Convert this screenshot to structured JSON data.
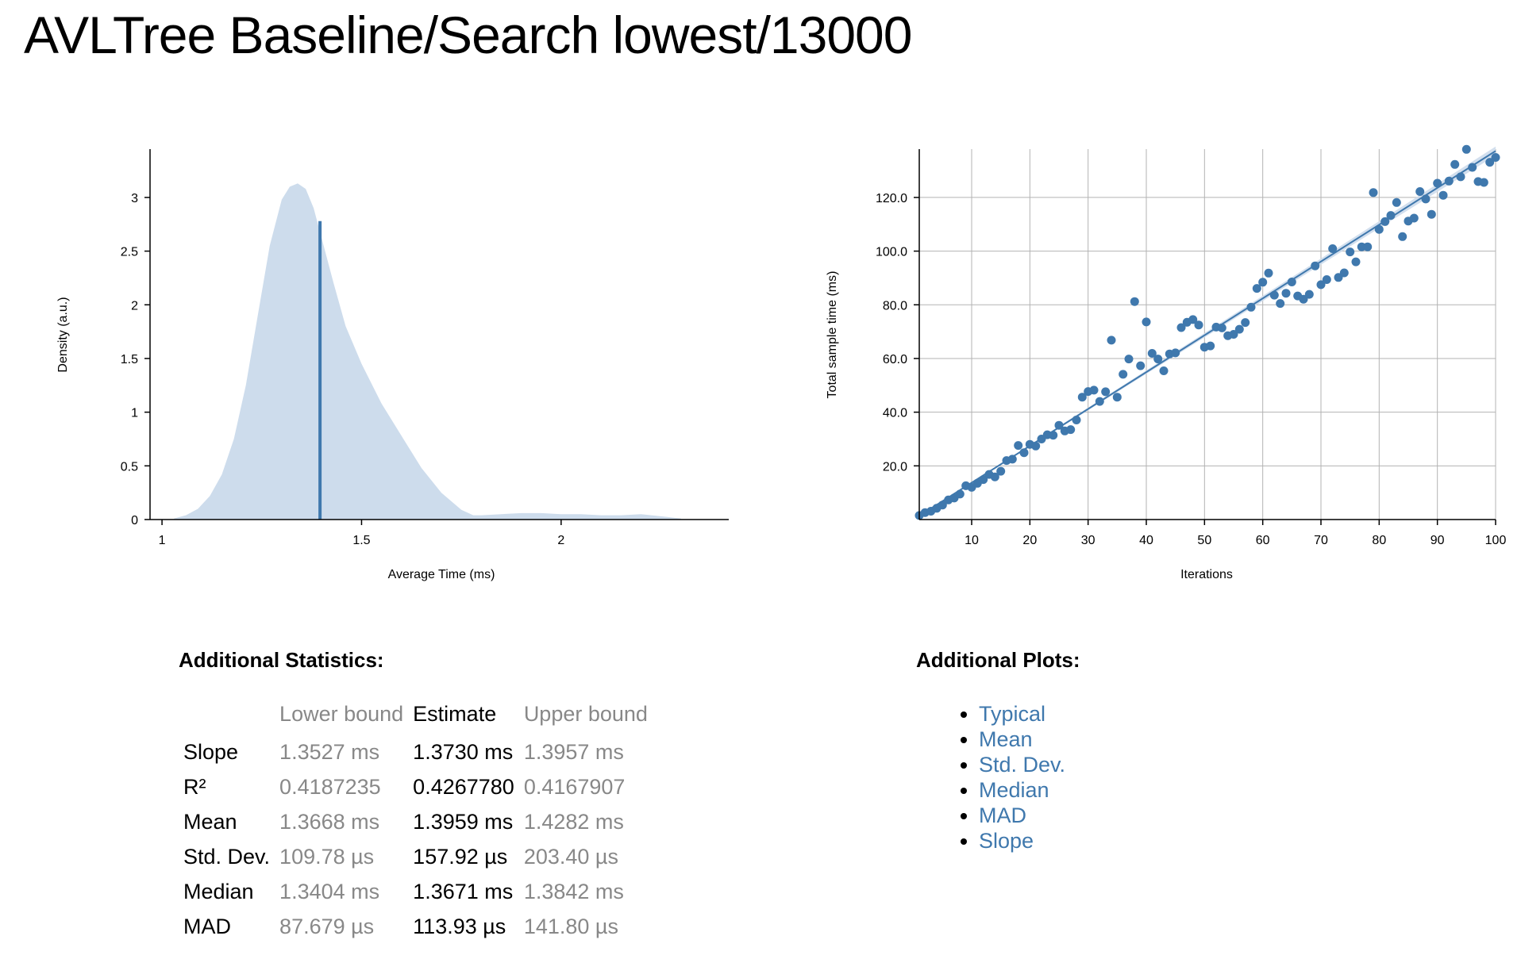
{
  "page": {
    "title": "AVLTree Baseline/Search lowest/13000"
  },
  "chart_data": [
    {
      "type": "area",
      "series_name": "PDF",
      "xlabel": "Average Time (ms)",
      "ylabel": "Density (a.u.)",
      "xlim": [
        0.97,
        2.42
      ],
      "ylim": [
        0,
        3.45
      ],
      "x_ticks": [
        "1",
        "1.5",
        "2"
      ],
      "x_tick_values": [
        1,
        1.5,
        2
      ],
      "y_ticks": [
        "0",
        "0.5",
        "1",
        "1.5",
        "2",
        "2.5",
        "3"
      ],
      "y_tick_values": [
        0,
        0.5,
        1,
        1.5,
        2,
        2.5,
        3
      ],
      "grid": false,
      "fill_color": "#cddcec",
      "mean_line_color": "#3f78ad",
      "mean_line": {
        "x": 1.3959,
        "y": 2.78
      },
      "density": {
        "x": [
          1.03,
          1.06,
          1.09,
          1.12,
          1.15,
          1.18,
          1.21,
          1.24,
          1.27,
          1.3,
          1.32,
          1.34,
          1.36,
          1.38,
          1.4,
          1.43,
          1.46,
          1.5,
          1.55,
          1.6,
          1.65,
          1.7,
          1.75,
          1.78,
          1.8,
          1.85,
          1.9,
          1.95,
          2.0,
          2.05,
          2.1,
          2.15,
          2.2,
          2.25,
          2.3
        ],
        "y": [
          0.01,
          0.04,
          0.1,
          0.22,
          0.42,
          0.75,
          1.25,
          1.9,
          2.55,
          2.98,
          3.1,
          3.13,
          3.08,
          2.9,
          2.62,
          2.2,
          1.8,
          1.45,
          1.08,
          0.78,
          0.48,
          0.25,
          0.09,
          0.04,
          0.04,
          0.05,
          0.06,
          0.06,
          0.05,
          0.05,
          0.04,
          0.04,
          0.05,
          0.03,
          0.01
        ]
      }
    },
    {
      "type": "scatter",
      "series_name": "Sample",
      "xlabel": "Iterations",
      "ylabel": "Total sample time (ms)",
      "xlim": [
        1,
        100
      ],
      "ylim": [
        0,
        138
      ],
      "x_ticks": [
        "10",
        "20",
        "30",
        "40",
        "50",
        "60",
        "70",
        "80",
        "90",
        "100"
      ],
      "x_tick_values": [
        10,
        20,
        30,
        40,
        50,
        60,
        70,
        80,
        90,
        100
      ],
      "y_ticks": [
        "20.0",
        "40.0",
        "60.0",
        "80.0",
        "100.0",
        "120.0"
      ],
      "y_tick_values": [
        20,
        40,
        60,
        80,
        100,
        120
      ],
      "grid": true,
      "point_color": "#3f78ad",
      "regression": {
        "slope": 1.373,
        "x": [
          1,
          100
        ],
        "y": [
          1.373,
          137.3
        ]
      },
      "points": {
        "x": [
          1,
          2,
          3,
          4,
          5,
          6,
          7,
          8,
          9,
          10,
          11,
          12,
          13,
          14,
          15,
          16,
          17,
          18,
          19,
          20,
          21,
          22,
          23,
          24,
          25,
          26,
          27,
          28,
          29,
          30,
          31,
          32,
          33,
          34,
          35,
          36,
          37,
          38,
          39,
          40,
          41,
          42,
          43,
          44,
          45,
          46,
          47,
          48,
          49,
          50,
          51,
          52,
          53,
          54,
          55,
          56,
          57,
          58,
          59,
          60,
          61,
          62,
          63,
          64,
          65,
          66,
          67,
          68,
          69,
          70,
          71,
          72,
          73,
          74,
          75,
          76,
          77,
          78,
          79,
          80,
          81,
          82,
          83,
          84,
          85,
          86,
          87,
          88,
          89,
          90,
          91,
          92,
          93,
          94,
          95,
          96,
          97,
          98,
          99,
          100
        ],
        "y": [
          1.5,
          2.6,
          3.1,
          4.2,
          5.4,
          7.3,
          8.0,
          9.5,
          12.6,
          12.0,
          13.5,
          14.9,
          16.8,
          15.9,
          18.0,
          22.0,
          22.5,
          27.6,
          24.9,
          28.0,
          27.4,
          30.0,
          31.6,
          31.4,
          35.1,
          33.0,
          33.5,
          37.1,
          45.6,
          47.7,
          48.2,
          44.0,
          47.6,
          66.8,
          45.6,
          54.1,
          59.8,
          81.2,
          57.3,
          73.6,
          61.9,
          59.8,
          55.4,
          61.7,
          62.1,
          71.5,
          73.5,
          74.5,
          72.5,
          64.2,
          64.7,
          71.7,
          71.4,
          68.5,
          69.0,
          70.9,
          73.4,
          79.1,
          86.1,
          88.4,
          91.8,
          83.6,
          80.5,
          84.3,
          88.5,
          83.3,
          82.1,
          83.9,
          94.5,
          87.5,
          89.4,
          100.9,
          90.2,
          91.9,
          99.7,
          96.0,
          101.6,
          101.6,
          121.8,
          108.1,
          111.0,
          113.3,
          118.1,
          105.4,
          111.2,
          112.3,
          122.2,
          119.4,
          113.7,
          125.3,
          120.8,
          126.1,
          132.3,
          127.7,
          137.9,
          131.2,
          125.9,
          125.6,
          133.1,
          134.9
        ]
      }
    }
  ],
  "stats": {
    "title": "Additional Statistics:",
    "headers": {
      "lower": "Lower bound",
      "estimate": "Estimate",
      "upper": "Upper bound"
    },
    "rows": [
      {
        "name": "Slope",
        "lower": "1.3527 ms",
        "estimate": "1.3730 ms",
        "upper": "1.3957 ms"
      },
      {
        "name": "R²",
        "lower": "0.4187235",
        "estimate": "0.4267780",
        "upper": "0.4167907"
      },
      {
        "name": "Mean",
        "lower": "1.3668 ms",
        "estimate": "1.3959 ms",
        "upper": "1.4282 ms"
      },
      {
        "name": "Std. Dev.",
        "lower": "109.78 µs",
        "estimate": "157.92 µs",
        "upper": "203.40 µs"
      },
      {
        "name": "Median",
        "lower": "1.3404 ms",
        "estimate": "1.3671 ms",
        "upper": "1.3842 ms"
      },
      {
        "name": "MAD",
        "lower": "87.679 µs",
        "estimate": "113.93 µs",
        "upper": "141.80 µs"
      }
    ]
  },
  "plots": {
    "title": "Additional Plots:",
    "links": [
      "Typical",
      "Mean",
      "Std. Dev.",
      "Median",
      "MAD",
      "Slope"
    ],
    "link_color": "#3f78ad"
  }
}
